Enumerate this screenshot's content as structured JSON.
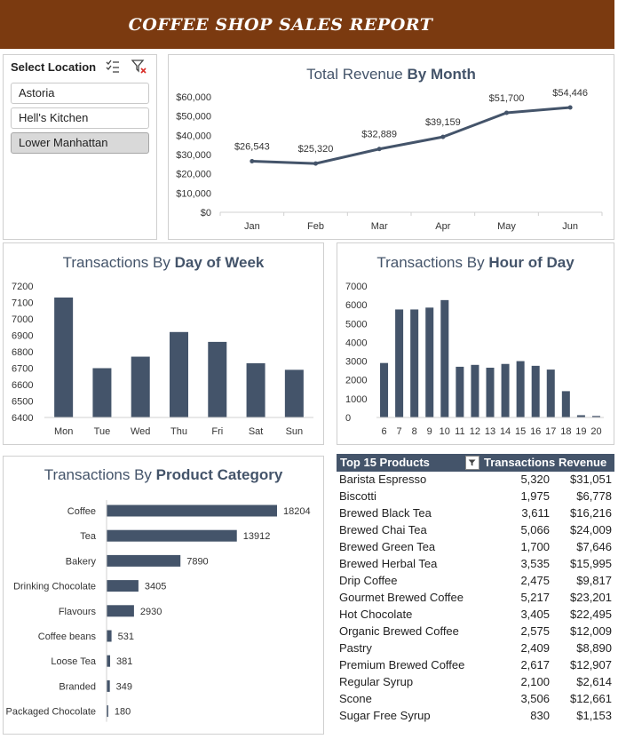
{
  "banner": {
    "title": "COFFEE SHOP SALES REPORT"
  },
  "slicer": {
    "header": "Select Location",
    "items": [
      {
        "label": "Astoria",
        "selected": false
      },
      {
        "label": "Hell's Kitchen",
        "selected": false
      },
      {
        "label": "Lower Manhattan",
        "selected": true
      }
    ],
    "icons": [
      "multi-select-icon",
      "clear-filter-icon"
    ]
  },
  "revenue_chart": {
    "title_prefix": "Total Revenue ",
    "title_bold": "By Month"
  },
  "dow_chart": {
    "title_prefix": "Transactions By ",
    "title_bold": "Day of Week"
  },
  "hour_chart": {
    "title_prefix": "Transactions By ",
    "title_bold": "Hour of Day"
  },
  "category_chart": {
    "title_prefix": "Transactions By ",
    "title_bold": "Product Category"
  },
  "products_table": {
    "headers": {
      "name": "Top 15 Products",
      "transactions": "Transactions",
      "revenue": "Revenue"
    },
    "rows": [
      {
        "name": "Barista Espresso",
        "transactions": "5,320",
        "revenue": "$31,051"
      },
      {
        "name": "Biscotti",
        "transactions": "1,975",
        "revenue": "$6,778"
      },
      {
        "name": "Brewed Black Tea",
        "transactions": "3,611",
        "revenue": "$16,216"
      },
      {
        "name": "Brewed Chai Tea",
        "transactions": "5,066",
        "revenue": "$24,009"
      },
      {
        "name": "Brewed Green Tea",
        "transactions": "1,700",
        "revenue": "$7,646"
      },
      {
        "name": "Brewed Herbal Tea",
        "transactions": "3,535",
        "revenue": "$15,995"
      },
      {
        "name": "Drip Coffee",
        "transactions": "2,475",
        "revenue": "$9,817"
      },
      {
        "name": "Gourmet Brewed Coffee",
        "transactions": "5,217",
        "revenue": "$23,201"
      },
      {
        "name": "Hot Chocolate",
        "transactions": "3,405",
        "revenue": "$22,495"
      },
      {
        "name": "Organic Brewed Coffee",
        "transactions": "2,575",
        "revenue": "$12,009"
      },
      {
        "name": "Pastry",
        "transactions": "2,409",
        "revenue": "$8,890"
      },
      {
        "name": "Premium Brewed Coffee",
        "transactions": "2,617",
        "revenue": "$12,907"
      },
      {
        "name": "Regular Syrup",
        "transactions": "2,100",
        "revenue": "$2,614"
      },
      {
        "name": "Scone",
        "transactions": "3,506",
        "revenue": "$12,661"
      },
      {
        "name": "Sugar Free Syrup",
        "transactions": "830",
        "revenue": "$1,153"
      }
    ]
  },
  "colors": {
    "banner": "#7b3a10",
    "series": "#44546a",
    "title": "#44546a"
  },
  "chart_data": [
    {
      "type": "line",
      "title": "Total Revenue By Month",
      "categories": [
        "Jan",
        "Feb",
        "Mar",
        "Apr",
        "May",
        "Jun"
      ],
      "values": [
        26543,
        25320,
        32889,
        39159,
        51700,
        54446
      ],
      "data_labels": [
        "$26,543",
        "$25,320",
        "$32,889",
        "$39,159",
        "$51,700",
        "$54,446"
      ],
      "y_ticks": [
        "$0",
        "$10,000",
        "$20,000",
        "$30,000",
        "$40,000",
        "$50,000",
        "$60,000"
      ],
      "ylim": [
        0,
        60000
      ],
      "grid": false
    },
    {
      "type": "bar",
      "title": "Transactions By Day of Week",
      "categories": [
        "Mon",
        "Tue",
        "Wed",
        "Thu",
        "Fri",
        "Sat",
        "Sun"
      ],
      "values": [
        7130,
        6700,
        6770,
        6920,
        6860,
        6730,
        6690
      ],
      "y_ticks": [
        "6400",
        "6500",
        "6600",
        "6700",
        "6800",
        "6900",
        "7000",
        "7100",
        "7200"
      ],
      "ylim": [
        6400,
        7200
      ],
      "grid": false
    },
    {
      "type": "bar",
      "title": "Transactions By Hour of Day",
      "categories": [
        "6",
        "7",
        "8",
        "9",
        "10",
        "11",
        "12",
        "13",
        "14",
        "15",
        "16",
        "17",
        "18",
        "19",
        "20"
      ],
      "values": [
        2900,
        5750,
        5750,
        5850,
        6250,
        2700,
        2800,
        2650,
        2850,
        3000,
        2750,
        2550,
        1400,
        120,
        80
      ],
      "y_ticks": [
        "0",
        "1000",
        "2000",
        "3000",
        "4000",
        "5000",
        "6000",
        "7000"
      ],
      "ylim": [
        0,
        7000
      ],
      "grid": false
    },
    {
      "type": "bar",
      "orientation": "horizontal",
      "title": "Transactions By Product Category",
      "categories": [
        "Coffee",
        "Tea",
        "Bakery",
        "Drinking Chocolate",
        "Flavours",
        "Coffee beans",
        "Loose Tea",
        "Branded",
        "Packaged Chocolate"
      ],
      "values": [
        18204,
        13912,
        7890,
        3405,
        2930,
        531,
        381,
        349,
        180
      ],
      "data_labels": [
        "18204",
        "13912",
        "7890",
        "3405",
        "2930",
        "531",
        "381",
        "349",
        "180"
      ],
      "grid": false
    }
  ]
}
